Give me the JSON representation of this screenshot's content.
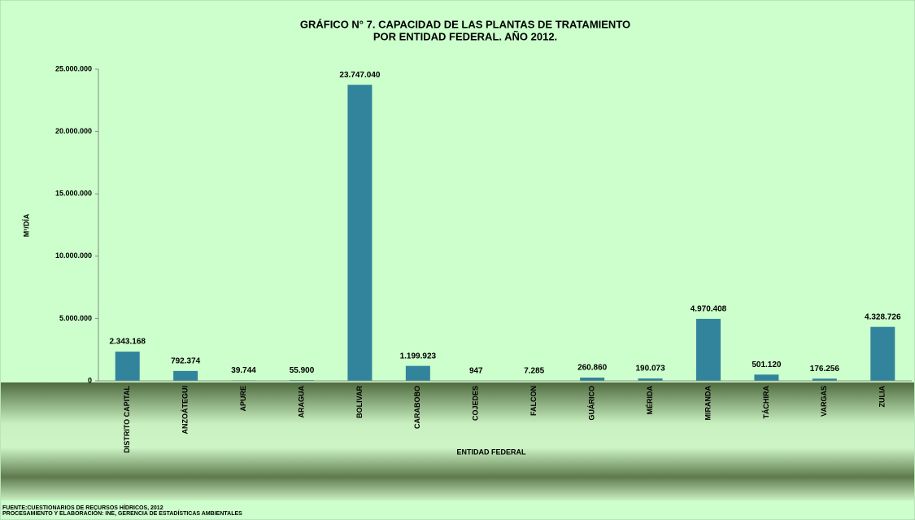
{
  "chart_data": {
    "type": "bar",
    "title": [
      "GRÁFICO N° 7. CAPACIDAD DE LAS PLANTAS DE TRATAMIENTO",
      "POR ENTIDAD FEDERAL. AÑO 2012."
    ],
    "y_label": "M³/DÍA",
    "x_label": "ENTIDAD FEDERAL",
    "footer": [
      "FUENTE:CUESTIONARIOS  DE  RECURSOS HÍDRICOS, 2012",
      "PROCESAMIENTO  Y ELABORACIÓN:  INE, GERENCIA DE ESTADÍSTICAS AMBIENTALES"
    ],
    "categories": [
      "DISTRITO CAPITAL",
      "ANZOÁTEGUI",
      "APURE",
      "ARAGUA",
      "BOLIVAR",
      "CARABOBO",
      "COJEDES",
      "FALCON",
      "GUÁRICO",
      "MÉRIDA",
      "MIRANDA",
      "TÁCHIRA",
      "VARGAS",
      "ZULIA"
    ],
    "values": [
      2343168,
      792374,
      39744,
      55900,
      23747040,
      1199923,
      947,
      7285,
      260860,
      190073,
      4970408,
      501120,
      176256,
      4328726
    ],
    "value_labels": [
      "2.343.168",
      "792.374",
      "39.744",
      "55.900",
      "23.747.040",
      "1.199.923",
      "947",
      "7.285",
      "260.860",
      "190.073",
      "4.970.408",
      "501.120",
      "176.256",
      "4.328.726"
    ],
    "color": "#31849b",
    "ylim": [
      0,
      25000000
    ],
    "yticks": [
      {
        "value": 0,
        "label": "0"
      },
      {
        "value": 5000000,
        "label": "5.000.000"
      },
      {
        "value": 10000000,
        "label": "10.000.000"
      },
      {
        "value": 15000000,
        "label": "15.000.000"
      },
      {
        "value": 20000000,
        "label": "20.000.000"
      },
      {
        "value": 25000000,
        "label": "25.000.000"
      }
    ]
  }
}
